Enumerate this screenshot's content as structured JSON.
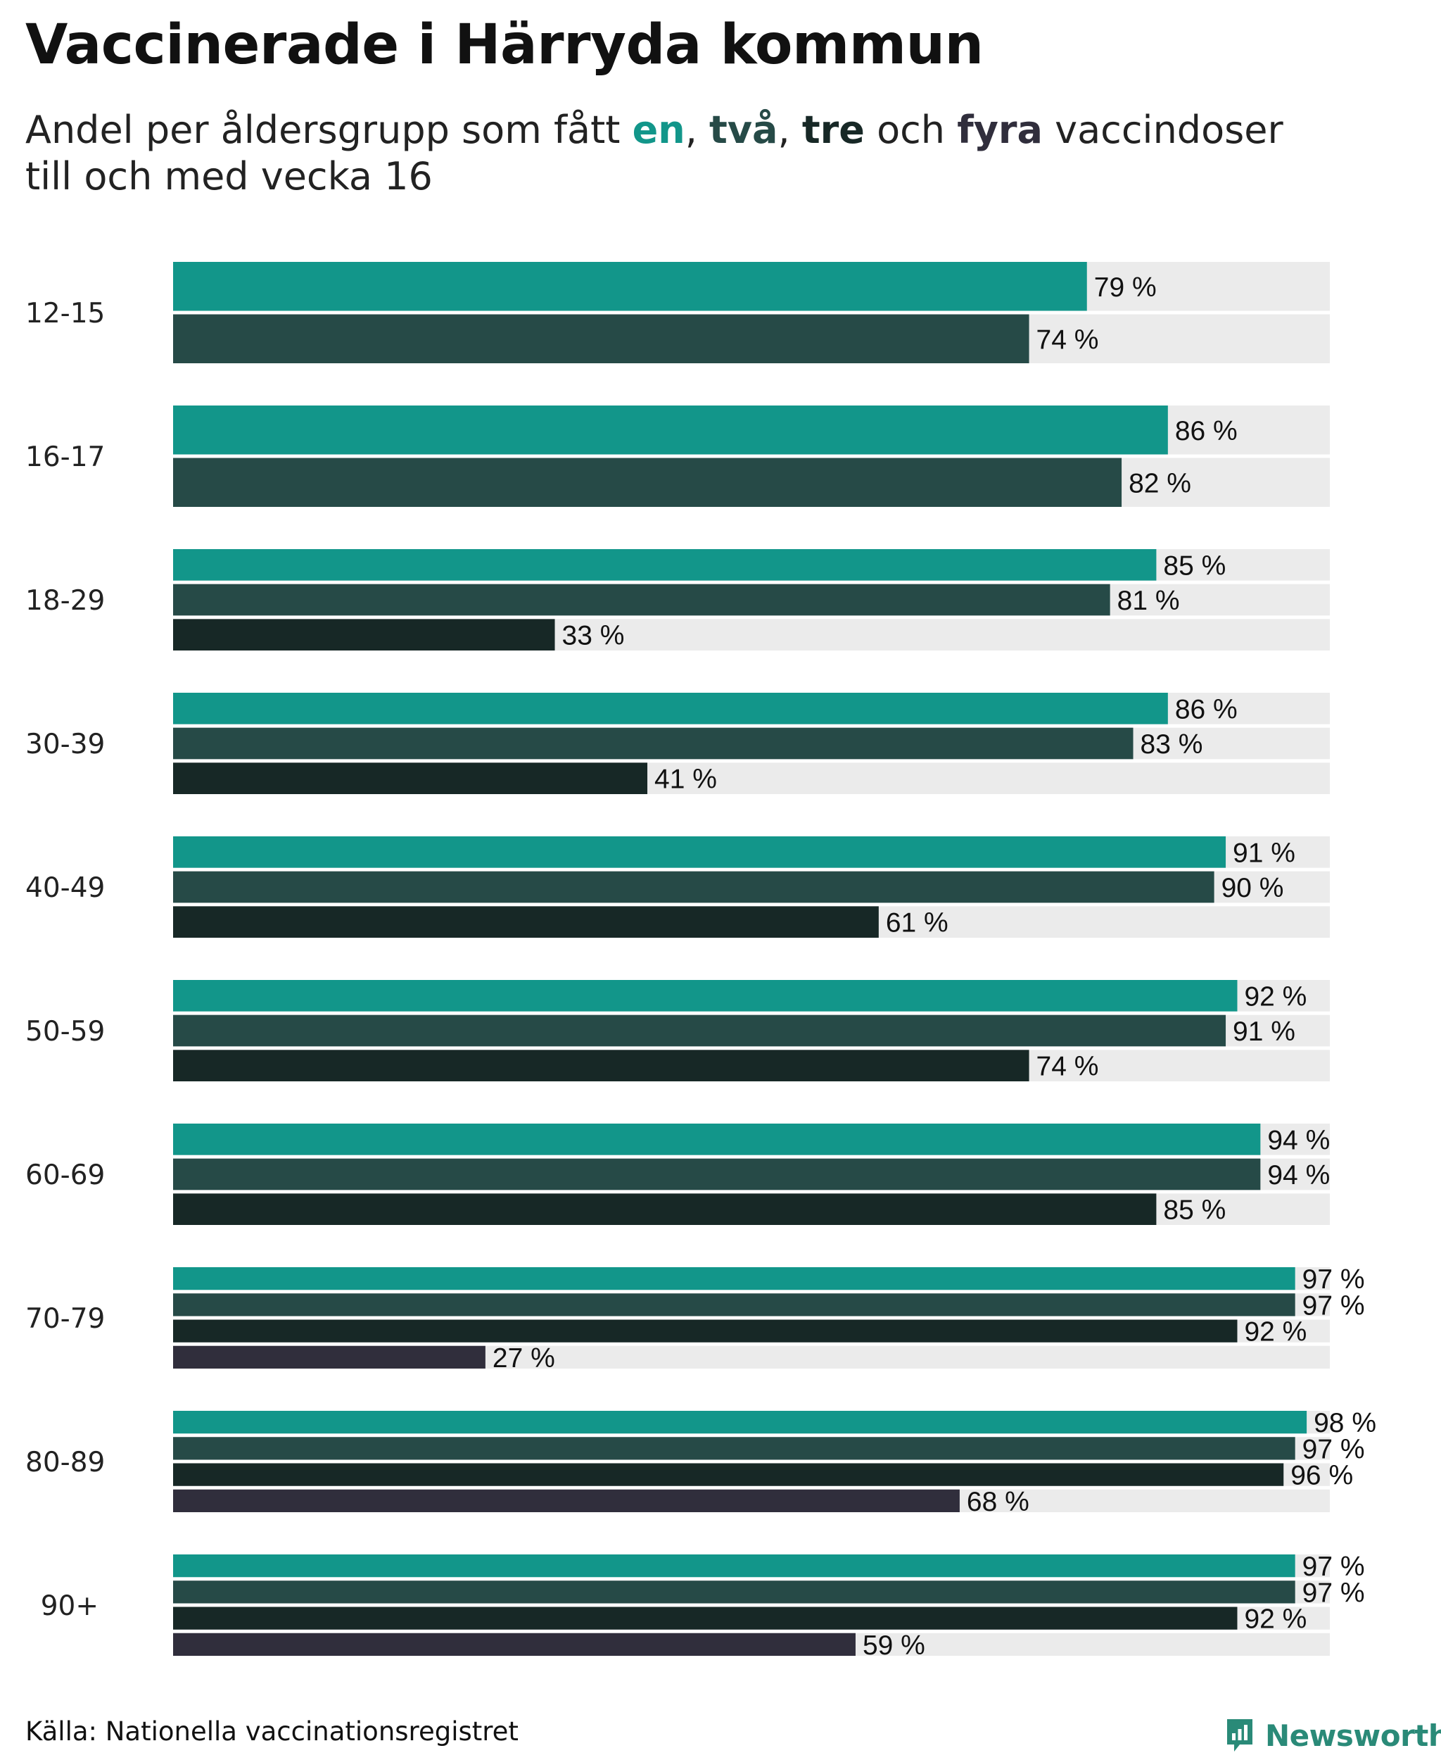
{
  "title": "Vaccinerade i Härryda kommun",
  "subtitle": {
    "prefix": "Andel per åldersgrupp som fått ",
    "dose1": "en",
    "sep1": ", ",
    "dose2": "två",
    "sep2": ", ",
    "dose3": "tre",
    "mid": " och ",
    "dose4": "fyra",
    "suffix": " vaccindoser",
    "line2": "till och med vecka 16"
  },
  "colors": {
    "dose1": "#12968a",
    "dose2": "#264a47",
    "dose3": "#172826",
    "dose4": "#302e3c",
    "track": "#ebebeb",
    "brand": "#2a8a78"
  },
  "chart_data": {
    "type": "bar",
    "orientation": "horizontal",
    "xlim": [
      0,
      100
    ],
    "value_suffix": " %",
    "series_names": [
      "en",
      "två",
      "tre",
      "fyra"
    ],
    "groups": [
      {
        "label": "12-15",
        "values": [
          79,
          74
        ]
      },
      {
        "label": "16-17",
        "values": [
          86,
          82
        ]
      },
      {
        "label": "18-29",
        "values": [
          85,
          81,
          33
        ]
      },
      {
        "label": "30-39",
        "values": [
          86,
          83,
          41
        ]
      },
      {
        "label": "40-49",
        "values": [
          91,
          90,
          61
        ]
      },
      {
        "label": "50-59",
        "values": [
          92,
          91,
          74
        ]
      },
      {
        "label": "60-69",
        "values": [
          94,
          94,
          85
        ]
      },
      {
        "label": "70-79",
        "values": [
          97,
          97,
          92,
          27
        ]
      },
      {
        "label": "80-89",
        "values": [
          98,
          97,
          96,
          68
        ]
      },
      {
        "label": "90+",
        "values": [
          97,
          97,
          92,
          59
        ]
      }
    ]
  },
  "footer": {
    "source": "Källa: Nationella vaccinationsregistret",
    "brand_name": "Newsworthy",
    "brand_icon": "newsworthy-logo-icon"
  }
}
